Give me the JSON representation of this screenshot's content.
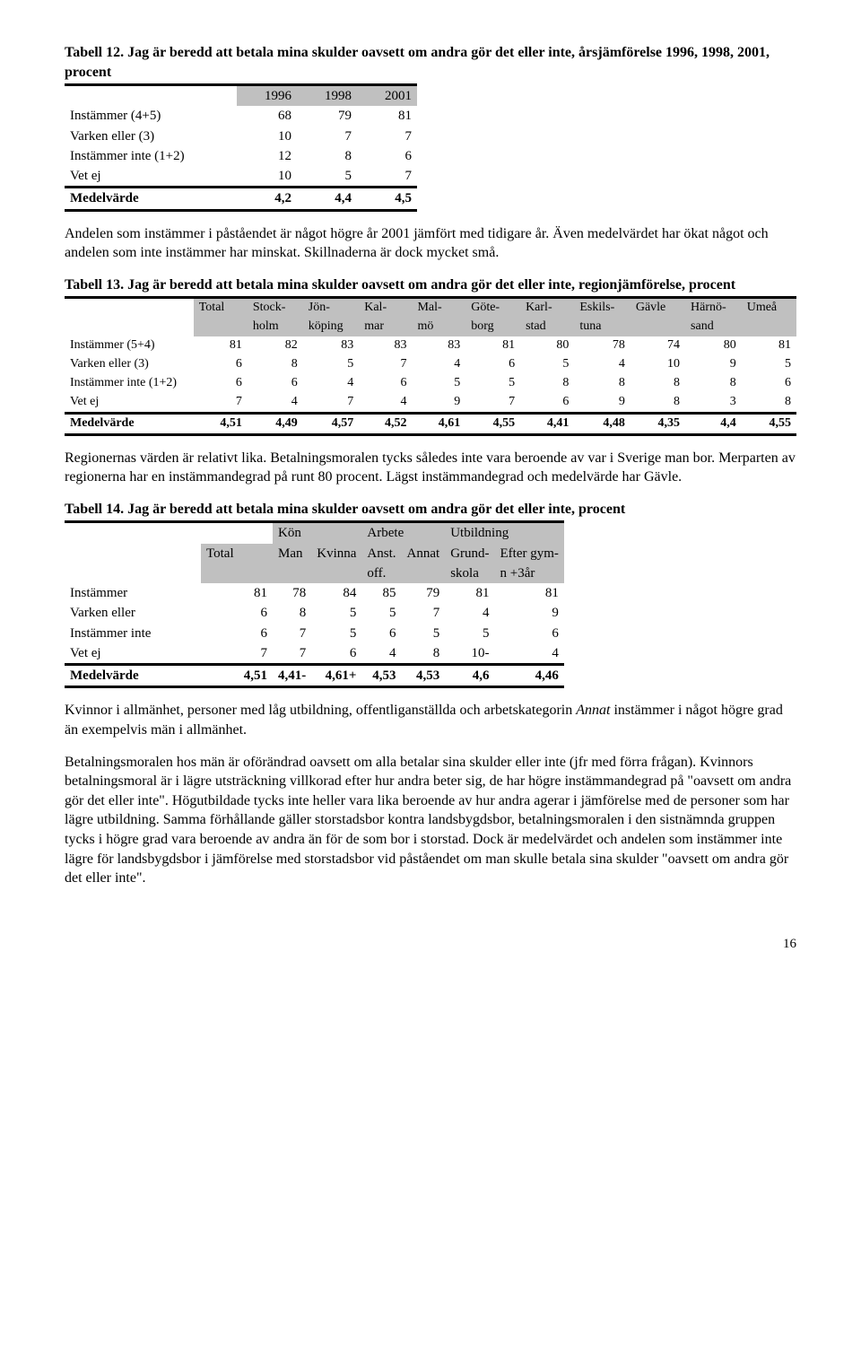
{
  "t12": {
    "title": "Tabell 12.  Jag är beredd att betala mina skulder oavsett om andra gör det eller inte, årsjämförelse 1996, 1998, 2001, procent",
    "years": [
      "1996",
      "1998",
      "2001"
    ],
    "rows": [
      {
        "label": "Instämmer (4+5)",
        "vals": [
          "68",
          "79",
          "81"
        ]
      },
      {
        "label": "Varken eller (3)",
        "vals": [
          "10",
          "7",
          "7"
        ]
      },
      {
        "label": "Instämmer inte (1+2)",
        "vals": [
          "12",
          "8",
          "6"
        ]
      },
      {
        "label": "Vet ej",
        "vals": [
          "10",
          "5",
          "7"
        ]
      }
    ],
    "medel": {
      "label": "Medelvärde",
      "vals": [
        "4,2",
        "4,4",
        "4,5"
      ]
    }
  },
  "para1": "Andelen som instämmer i påståendet är något högre år 2001 jämfört med tidigare år. Även medelvärdet har ökat något och andelen som inte instämmer har minskat. Skillnaderna är dock mycket små.",
  "t13": {
    "title": "Tabell 13.  Jag är beredd att betala mina skulder oavsett om andra gör det eller inte, regionjämförelse, procent",
    "cols1": [
      "Total",
      "Stock-",
      "Jön-",
      "Kal-",
      "Mal-",
      "Göte-",
      "Karl-",
      "Eskils-",
      "Gävle",
      "Härnö-",
      "Umeå"
    ],
    "cols2": [
      "",
      "holm",
      "köping",
      "mar",
      "mö",
      "borg",
      "stad",
      "tuna",
      "",
      "sand",
      ""
    ],
    "rows": [
      {
        "label": "Instämmer (5+4)",
        "vals": [
          "81",
          "82",
          "83",
          "83",
          "83",
          "81",
          "80",
          "78",
          "74",
          "80",
          "81"
        ]
      },
      {
        "label": "Varken eller (3)",
        "vals": [
          "6",
          "8",
          "5",
          "7",
          "4",
          "6",
          "5",
          "4",
          "10",
          "9",
          "5"
        ]
      },
      {
        "label": "Instämmer inte (1+2)",
        "vals": [
          "6",
          "6",
          "4",
          "6",
          "5",
          "5",
          "8",
          "8",
          "8",
          "8",
          "6"
        ]
      },
      {
        "label": "Vet ej",
        "vals": [
          "7",
          "4",
          "7",
          "4",
          "9",
          "7",
          "6",
          "9",
          "8",
          "3",
          "8"
        ]
      }
    ],
    "medel": {
      "label": "Medelvärde",
      "vals": [
        "4,51",
        "4,49",
        "4,57",
        "4,52",
        "4,61",
        "4,55",
        "4,41",
        "4,48",
        "4,35",
        "4,4",
        "4,55"
      ]
    }
  },
  "para2": "Regionernas värden är relativt lika. Betalningsmoralen tycks således inte vara beroende av var i Sverige man bor. Merparten av regionerna har en instämmandegrad på runt 80 procent. Lägst instämmandegrad och medelvärde har Gävle.",
  "t14": {
    "title": "Tabell 14.  Jag är beredd att betala mina skulder oavsett om andra gör det eller inte, procent",
    "group_headers": [
      "Kön",
      "Arbete",
      "Utbildning"
    ],
    "cols1": [
      "Total",
      "Man",
      "Kvinna",
      "Anst.",
      "Annat",
      "Grund-",
      "Efter gym-"
    ],
    "cols2": [
      "",
      "",
      "",
      "off.",
      "",
      "skola",
      "n +3år"
    ],
    "rows": [
      {
        "label": "Instämmer",
        "vals": [
          "81",
          "78",
          "84",
          "85",
          "79",
          "81",
          "81"
        ]
      },
      {
        "label": "Varken eller",
        "vals": [
          "6",
          "8",
          "5",
          "5",
          "7",
          "4",
          "9"
        ]
      },
      {
        "label": "Instämmer inte",
        "vals": [
          "6",
          "7",
          "5",
          "6",
          "5",
          "5",
          "6"
        ]
      },
      {
        "label": "Vet ej",
        "vals": [
          "7",
          "7",
          "6",
          "4",
          "8",
          "10-",
          "4"
        ]
      }
    ],
    "medel": {
      "label": "Medelvärde",
      "vals": [
        "4,51",
        "4,41-",
        "4,61+",
        "4,53",
        "4,53",
        "4,6",
        "4,46"
      ]
    }
  },
  "para3a": "Kvinnor i allmänhet, personer med låg utbildning, offentliganställda och arbetskategorin ",
  "para3_italic": "Annat",
  "para3b": " instämmer i något högre grad än exempelvis män i allmänhet.",
  "para4": "Betalningsmoralen hos män är oförändrad oavsett om alla betalar sina skulder eller inte (jfr med förra frågan). Kvinnors betalningsmoral är i lägre utsträckning villkorad efter hur andra beter sig, de har högre instämmandegrad på \"oavsett om andra gör det eller inte\". Högutbildade tycks inte heller vara lika beroende av hur andra agerar i jämförelse med de personer som har lägre utbildning. Samma förhållande gäller storstadsbor kontra landsbygdsbor, betalningsmoralen i den sistnämnda gruppen tycks i högre grad vara beroende av andra än för de som bor i storstad. Dock är medelvärdet och andelen som instämmer inte lägre för landsbygdsbor i jämförelse med storstadsbor vid påståendet om man skulle betala sina skulder \"oavsett om andra gör det eller inte\".",
  "page": "16"
}
